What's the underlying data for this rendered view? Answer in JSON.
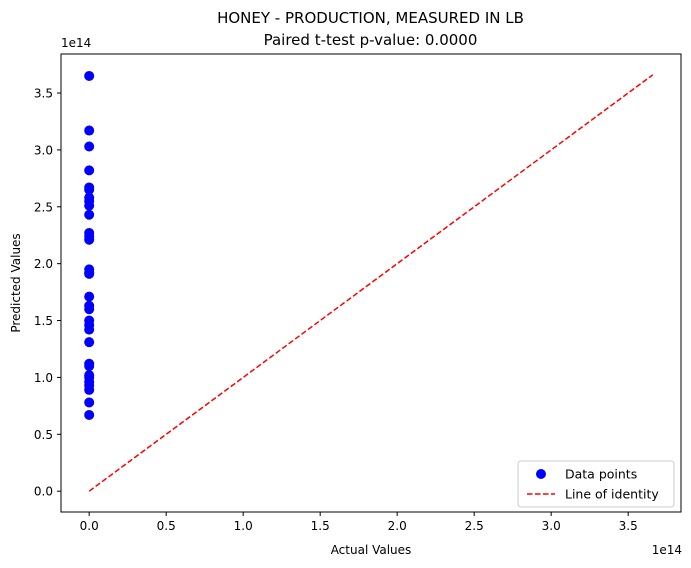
{
  "chart_data": {
    "type": "scatter",
    "title": "HONEY - PRODUCTION, MEASURED IN LB",
    "subtitle": "Paired t-test p-value: 0.0000",
    "xlabel": "Actual Values",
    "ylabel": "Predicted Values",
    "x_offset_text": "1e14",
    "y_offset_text": "1e14",
    "xlim": [
      -0.183,
      3.843
    ],
    "ylim": [
      -0.183,
      3.843
    ],
    "x_ticks": [
      0.0,
      0.5,
      1.0,
      1.5,
      2.0,
      2.5,
      3.0,
      3.5
    ],
    "x_tick_labels": [
      "0.0",
      "0.5",
      "1.0",
      "1.5",
      "2.0",
      "2.5",
      "3.0",
      "3.5"
    ],
    "y_ticks": [
      0.0,
      0.5,
      1.0,
      1.5,
      2.0,
      2.5,
      3.0,
      3.5
    ],
    "y_tick_labels": [
      "0.0",
      "0.5",
      "1.0",
      "1.5",
      "2.0",
      "2.5",
      "3.0",
      "3.5"
    ],
    "grid": false,
    "legend_position": "lower-right",
    "series": [
      {
        "name": "Data points",
        "kind": "scatter",
        "color": "#0000ff",
        "points": [
          {
            "x": 0.0,
            "y": 3.65
          },
          {
            "x": 0.0,
            "y": 3.17
          },
          {
            "x": 0.0,
            "y": 3.03
          },
          {
            "x": 0.0,
            "y": 2.82
          },
          {
            "x": 0.0,
            "y": 2.67
          },
          {
            "x": 0.0,
            "y": 2.65
          },
          {
            "x": 0.0,
            "y": 2.58
          },
          {
            "x": 0.0,
            "y": 2.55
          },
          {
            "x": 0.0,
            "y": 2.51
          },
          {
            "x": 0.0,
            "y": 2.43
          },
          {
            "x": 0.0,
            "y": 2.27
          },
          {
            "x": 0.0,
            "y": 2.24
          },
          {
            "x": 0.0,
            "y": 2.21
          },
          {
            "x": 0.0,
            "y": 1.95
          },
          {
            "x": 0.0,
            "y": 1.92
          },
          {
            "x": 0.0,
            "y": 1.91
          },
          {
            "x": 0.0,
            "y": 1.71
          },
          {
            "x": 0.0,
            "y": 1.63
          },
          {
            "x": 0.0,
            "y": 1.6
          },
          {
            "x": 0.0,
            "y": 1.5
          },
          {
            "x": 0.0,
            "y": 1.46
          },
          {
            "x": 0.0,
            "y": 1.42
          },
          {
            "x": 0.0,
            "y": 1.31
          },
          {
            "x": 0.0,
            "y": 1.12
          },
          {
            "x": 0.0,
            "y": 1.1
          },
          {
            "x": 0.0,
            "y": 1.02
          },
          {
            "x": 0.0,
            "y": 1.0
          },
          {
            "x": 0.0,
            "y": 0.96
          },
          {
            "x": 0.0,
            "y": 0.93
          },
          {
            "x": 0.0,
            "y": 0.89
          },
          {
            "x": 0.0,
            "y": 0.78
          },
          {
            "x": 0.0,
            "y": 0.67
          }
        ]
      },
      {
        "name": "Line of identity",
        "kind": "line",
        "color": "#ff0000",
        "style": "dashed",
        "points": [
          {
            "x": 0.0,
            "y": 0.0
          },
          {
            "x": 3.66,
            "y": 3.66
          }
        ]
      }
    ]
  }
}
